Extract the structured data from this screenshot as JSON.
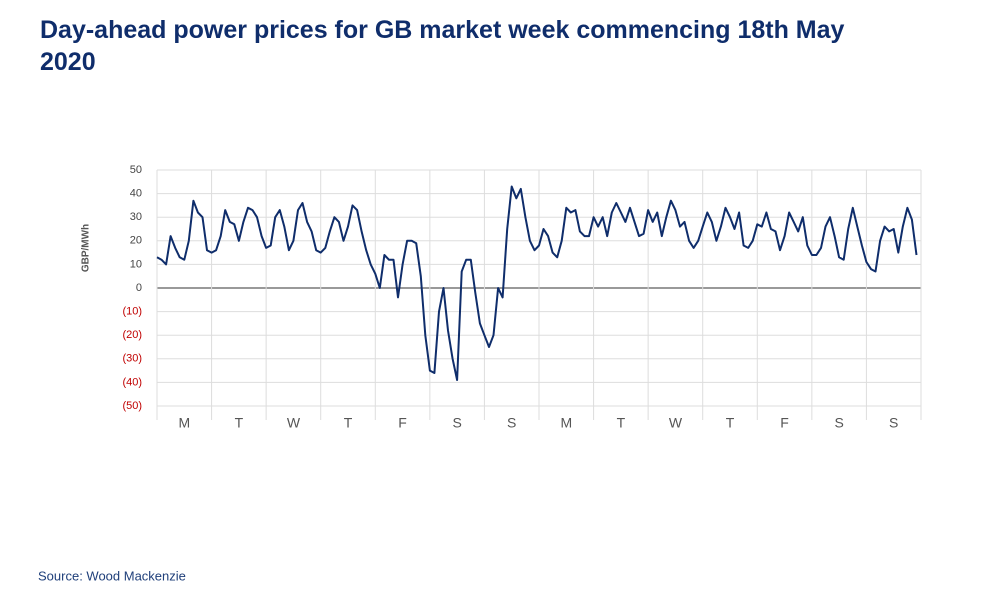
{
  "chart_data": {
    "type": "line",
    "title": "Day-ahead power prices for GB market week commencing 18th May 2020",
    "ylabel": "GBP/MWh",
    "source": "Source: Wood Mackenzie",
    "xlim": [
      0,
      336
    ],
    "xticks": [
      {
        "value": 12,
        "label": "M"
      },
      {
        "value": 36,
        "label": "T"
      },
      {
        "value": 60,
        "label": "W"
      },
      {
        "value": 84,
        "label": "T"
      },
      {
        "value": 108,
        "label": "F"
      },
      {
        "value": 132,
        "label": "S"
      },
      {
        "value": 156,
        "label": "S"
      },
      {
        "value": 180,
        "label": "M"
      },
      {
        "value": 204,
        "label": "T"
      },
      {
        "value": 228,
        "label": "W"
      },
      {
        "value": 252,
        "label": "T"
      },
      {
        "value": 276,
        "label": "F"
      },
      {
        "value": 300,
        "label": "S"
      },
      {
        "value": 324,
        "label": "S"
      }
    ],
    "ylim": [
      -50,
      50
    ],
    "yticks": [
      {
        "value": -50,
        "label": "(50)"
      },
      {
        "value": -40,
        "label": "(40)"
      },
      {
        "value": -30,
        "label": "(30)"
      },
      {
        "value": -20,
        "label": "(20)"
      },
      {
        "value": -10,
        "label": "(10)"
      },
      0,
      10,
      20,
      30,
      40,
      50
    ],
    "negative_tick_color": "#c00000",
    "grid": true,
    "x": [
      0,
      2,
      4,
      6,
      8,
      10,
      12,
      14,
      16,
      18,
      20,
      22,
      24,
      26,
      28,
      30,
      32,
      34,
      36,
      38,
      40,
      42,
      44,
      46,
      48,
      50,
      52,
      54,
      56,
      58,
      60,
      62,
      64,
      66,
      68,
      70,
      72,
      74,
      76,
      78,
      80,
      82,
      84,
      86,
      88,
      90,
      92,
      94,
      96,
      98,
      100,
      102,
      104,
      106,
      108,
      110,
      112,
      114,
      116,
      118,
      120,
      122,
      124,
      126,
      128,
      130,
      132,
      134,
      136,
      138,
      140,
      142,
      144,
      146,
      148,
      150,
      152,
      154,
      156,
      158,
      160,
      162,
      164,
      166,
      168,
      170,
      172,
      174,
      176,
      178,
      180,
      182,
      184,
      186,
      188,
      190,
      192,
      194,
      196,
      198,
      200,
      202,
      204,
      206,
      208,
      210,
      212,
      214,
      216,
      218,
      220,
      222,
      224,
      226,
      228,
      230,
      232,
      234,
      236,
      238,
      240,
      242,
      244,
      246,
      248,
      250,
      252,
      254,
      256,
      258,
      260,
      262,
      264,
      266,
      268,
      270,
      272,
      274,
      276,
      278,
      280,
      282,
      284,
      286,
      288,
      290,
      292,
      294,
      296,
      298,
      300,
      302,
      304,
      306,
      308,
      310,
      312,
      314,
      316,
      318,
      320,
      322,
      324,
      326,
      328,
      330,
      332,
      334
    ],
    "series": [
      {
        "color": "#0f2d6b",
        "values": [
          13,
          12,
          10,
          22,
          17,
          13,
          12,
          20,
          37,
          32,
          30,
          16,
          15,
          16,
          22,
          33,
          28,
          27,
          20,
          28,
          34,
          33,
          30,
          22,
          17,
          18,
          30,
          33,
          26,
          16,
          20,
          33,
          36,
          28,
          24,
          16,
          15,
          17,
          24,
          30,
          28,
          20,
          26,
          35,
          33,
          24,
          16,
          10,
          6,
          0,
          14,
          12,
          12,
          -4,
          10,
          20,
          20,
          19,
          5,
          -20,
          -35,
          -36,
          -10,
          0,
          -18,
          -30,
          -39,
          7,
          12,
          12,
          -2,
          -15,
          -20,
          -25,
          -20,
          0,
          -4,
          25,
          43,
          38,
          42,
          30,
          20,
          16,
          18,
          25,
          22,
          15,
          13,
          20,
          34,
          32,
          33,
          24,
          22,
          22,
          30,
          26,
          30,
          22,
          32,
          36,
          32,
          28,
          34,
          28,
          22,
          23,
          33,
          28,
          32,
          22,
          30,
          37,
          33,
          26,
          28,
          20,
          17,
          20,
          26,
          32,
          28,
          20,
          26,
          34,
          30,
          25,
          32,
          18,
          17,
          20,
          27,
          26,
          32,
          25,
          24,
          16,
          22,
          32,
          28,
          24,
          30,
          18,
          14,
          14,
          17,
          26,
          30,
          22,
          13,
          12,
          25,
          34,
          26,
          18,
          11,
          8,
          7,
          20,
          26,
          24,
          25,
          15,
          26,
          34,
          29,
          14
        ]
      }
    ]
  }
}
